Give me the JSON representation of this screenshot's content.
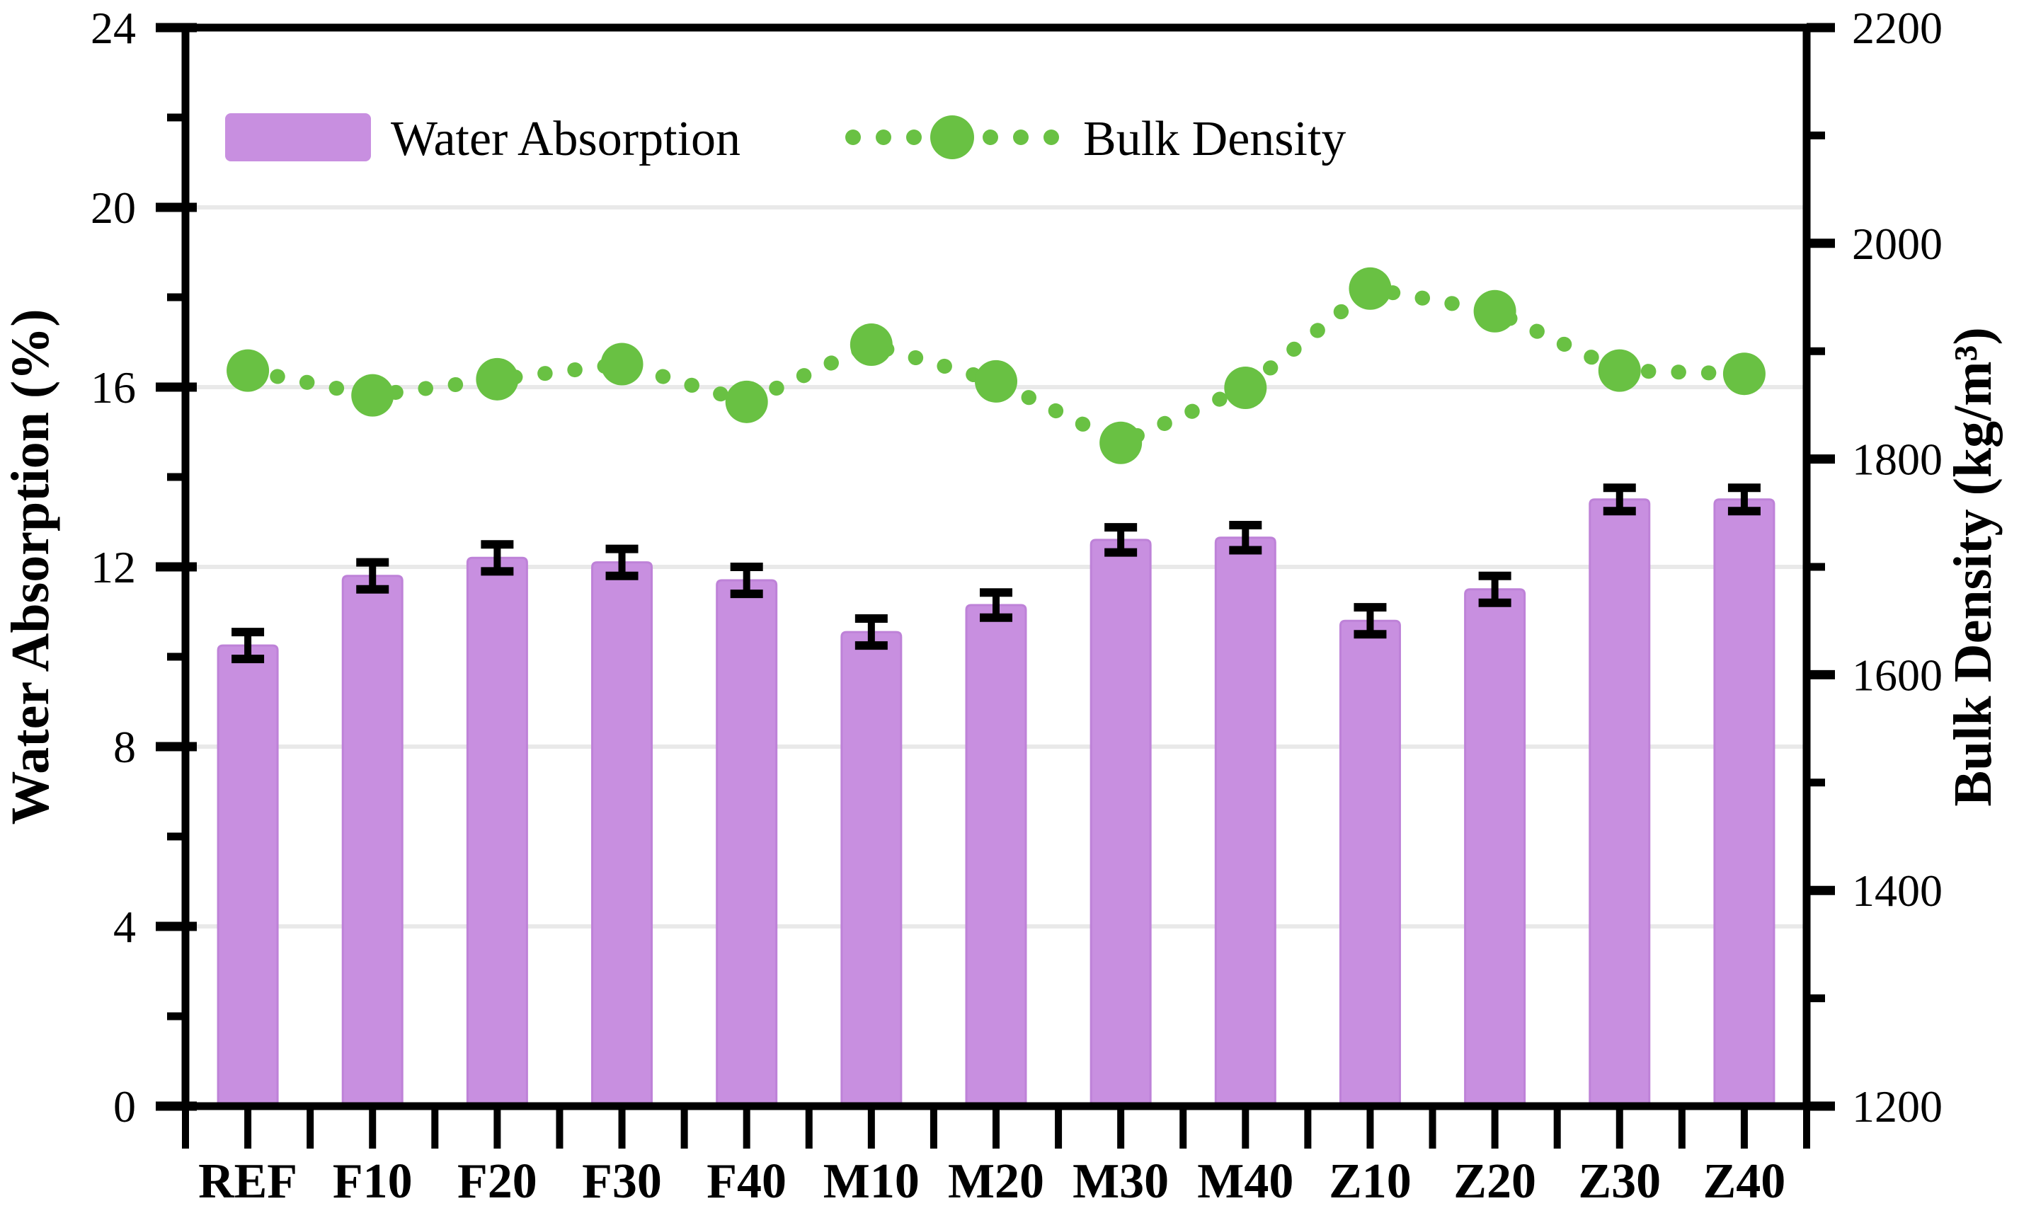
{
  "chart_data": {
    "type": "bar",
    "subtype": "combo-bar-dotted-line-dual-axis",
    "categories": [
      "REF",
      "F10",
      "F20",
      "F30",
      "F40",
      "M10",
      "M20",
      "M30",
      "M40",
      "Z10",
      "Z20",
      "Z30",
      "Z40"
    ],
    "series": [
      {
        "name": "Water Absorption",
        "type": "bar",
        "axis": "left",
        "values": [
          10.25,
          11.8,
          12.2,
          12.1,
          11.7,
          10.55,
          11.15,
          12.6,
          12.65,
          10.8,
          11.5,
          13.5,
          13.5
        ],
        "error_bars": [
          0.3,
          0.3,
          0.3,
          0.3,
          0.3,
          0.3,
          0.28,
          0.28,
          0.28,
          0.3,
          0.3,
          0.26,
          0.26
        ],
        "color": "#c88fe0"
      },
      {
        "name": "Bulk Density",
        "type": "line",
        "line_style": "dotted",
        "marker": "circle",
        "axis": "right",
        "values": [
          1882,
          1859,
          1874,
          1888,
          1853,
          1906,
          1872,
          1815,
          1866,
          1958,
          1937,
          1882,
          1879
        ],
        "color": "#69c143"
      }
    ],
    "left_axis": {
      "title": "Water Absorption (%)",
      "min": 0,
      "max": 24,
      "major_tick_labels": [
        "0",
        "4",
        "8",
        "12",
        "16",
        "20",
        "24"
      ],
      "major_step": 4,
      "minor_step": 2
    },
    "right_axis": {
      "title": "Bulk Density (kg/m³)",
      "min": 1200,
      "max": 2200,
      "major_tick_labels": [
        "1200",
        "1400",
        "1600",
        "1800",
        "2000",
        "2200"
      ],
      "major_step": 200,
      "minor_step": 100
    },
    "legend": {
      "position": "top-left-inside",
      "entries": [
        {
          "label": "Water Absorption",
          "swatch": "bar-swatch",
          "color": "#c88fe0"
        },
        {
          "label": "Bulk Density",
          "swatch": "dotted-line-marker",
          "color": "#69c143"
        }
      ]
    },
    "grid": {
      "shown": true,
      "color": "#e9e9e9"
    },
    "colors": {
      "bar_fill": "#c88fe0",
      "line_green": "#69c143",
      "error_bar": "#000000",
      "frame": "#000000",
      "gridline": "#e9e9e9",
      "background": "#ffffff"
    }
  }
}
